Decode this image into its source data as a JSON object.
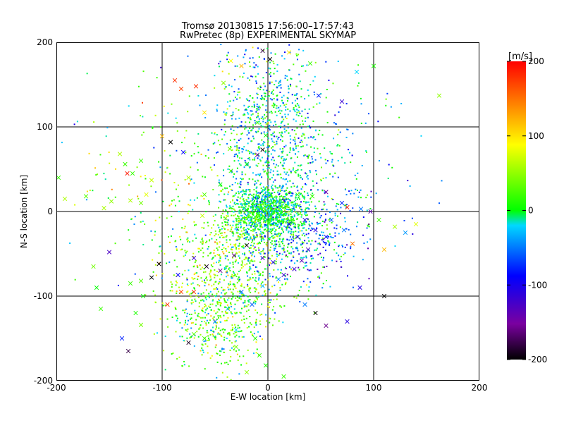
{
  "chart_data": {
    "type": "scatter",
    "title": "Tromsø 20130815 17:56:00–17:57:43",
    "subtitle": "RwPretec (8p) EXPERIMENTAL SKYMAP",
    "xlabel": "E-W location [km]",
    "ylabel": "N-S location [km]",
    "xlim": [
      -200,
      200
    ],
    "ylim": [
      -200,
      200
    ],
    "xticks": [
      "-200",
      "-100",
      "0",
      "100",
      "200"
    ],
    "yticks": [
      "-200",
      "-100",
      "0",
      "100",
      "200"
    ],
    "grid": true,
    "colorbar": {
      "label": "[m/s]",
      "range": [
        -200,
        200
      ],
      "ticks": [
        "200",
        "100",
        "0",
        "-100",
        "-200"
      ],
      "colormap": [
        "#000000",
        "#7a00a0",
        "#0000ff",
        "#00d8ff",
        "#00ff00",
        "#ffff00",
        "#ff0000"
      ]
    },
    "series": [
      {
        "marker": "cross",
        "points": [
          [
            -5,
            190,
            -180
          ],
          [
            -88,
            155,
            180
          ],
          [
            -82,
            145,
            170
          ],
          [
            -68,
            148,
            180
          ],
          [
            -42,
            152,
            50
          ],
          [
            -35,
            178,
            90
          ],
          [
            -25,
            172,
            120
          ],
          [
            2,
            180,
            -200
          ],
          [
            20,
            188,
            100
          ],
          [
            40,
            175,
            20
          ],
          [
            48,
            137,
            -80
          ],
          [
            70,
            130,
            -120
          ],
          [
            84,
            165,
            -20
          ],
          [
            100,
            172,
            10
          ],
          [
            162,
            137,
            50
          ],
          [
            -60,
            117,
            100
          ],
          [
            -10,
            105,
            30
          ],
          [
            -2,
            90,
            0
          ],
          [
            -100,
            89,
            120
          ],
          [
            -92,
            82,
            -200
          ],
          [
            -80,
            70,
            -90
          ],
          [
            -36,
            74,
            40
          ],
          [
            -5,
            73,
            -200
          ],
          [
            -10,
            67,
            -160
          ],
          [
            -20,
            56,
            0
          ],
          [
            -35,
            48,
            20
          ],
          [
            -45,
            32,
            0
          ],
          [
            -60,
            20,
            30
          ],
          [
            -75,
            40,
            60
          ],
          [
            -110,
            37,
            70
          ],
          [
            -115,
            20,
            80
          ],
          [
            -130,
            13,
            60
          ],
          [
            -148,
            12,
            50
          ],
          [
            -155,
            4,
            60
          ],
          [
            -172,
            18,
            30
          ],
          [
            -192,
            15,
            60
          ],
          [
            -198,
            40,
            20
          ],
          [
            -120,
            60,
            20
          ],
          [
            -135,
            56,
            20
          ],
          [
            -133,
            45,
            190
          ],
          [
            -120,
            10,
            40
          ],
          [
            -140,
            68,
            60
          ],
          [
            -128,
            45,
            20
          ],
          [
            28,
            20,
            30
          ],
          [
            42,
            18,
            20
          ],
          [
            55,
            23,
            -150
          ],
          [
            70,
            10,
            -80
          ],
          [
            75,
            5,
            190
          ],
          [
            88,
            3,
            -50
          ],
          [
            97,
            0,
            -140
          ],
          [
            105,
            -10,
            20
          ],
          [
            120,
            -18,
            60
          ],
          [
            130,
            -25,
            -40
          ],
          [
            140,
            -15,
            80
          ],
          [
            110,
            -45,
            120
          ],
          [
            -62,
            -5,
            70
          ],
          [
            -40,
            -8,
            50
          ],
          [
            -20,
            2,
            0
          ],
          [
            15,
            -3,
            0
          ],
          [
            35,
            -10,
            -110
          ],
          [
            45,
            -22,
            -110
          ],
          [
            55,
            -30,
            -100
          ],
          [
            60,
            -10,
            -60
          ],
          [
            72,
            -22,
            -50
          ],
          [
            80,
            -38,
            150
          ],
          [
            20,
            -15,
            -110
          ],
          [
            28,
            -30,
            -110
          ],
          [
            38,
            -45,
            -130
          ],
          [
            32,
            -58,
            -140
          ],
          [
            25,
            -68,
            -120
          ],
          [
            15,
            -75,
            -120
          ],
          [
            5,
            -60,
            -110
          ],
          [
            -5,
            -55,
            -140
          ],
          [
            -20,
            -40,
            -190
          ],
          [
            -32,
            -52,
            -170
          ],
          [
            -45,
            -70,
            -160
          ],
          [
            -58,
            -65,
            -190
          ],
          [
            -70,
            -55,
            -120
          ],
          [
            -85,
            -75,
            -90
          ],
          [
            -103,
            -62,
            -200
          ],
          [
            -110,
            -78,
            -200
          ],
          [
            -120,
            -82,
            30
          ],
          [
            -130,
            -85,
            20
          ],
          [
            -150,
            -48,
            -130
          ],
          [
            -165,
            -65,
            40
          ],
          [
            -158,
            -115,
            20
          ],
          [
            -162,
            -90,
            0
          ],
          [
            -138,
            -150,
            -80
          ],
          [
            -132,
            -165,
            -180
          ],
          [
            -120,
            -134,
            40
          ],
          [
            -95,
            -110,
            180
          ],
          [
            -82,
            -95,
            170
          ],
          [
            -70,
            -95,
            180
          ],
          [
            -50,
            -130,
            -50
          ],
          [
            -38,
            -115,
            -30
          ],
          [
            -15,
            -110,
            -60
          ],
          [
            -25,
            -95,
            -60
          ],
          [
            -5,
            -88,
            -30
          ],
          [
            10,
            -80,
            -40
          ],
          [
            35,
            -110,
            -50
          ],
          [
            45,
            -120,
            -200
          ],
          [
            55,
            -135,
            -160
          ],
          [
            75,
            -130,
            -110
          ],
          [
            87,
            -90,
            -110
          ],
          [
            110,
            -100,
            -200
          ],
          [
            -30,
            -140,
            -20
          ],
          [
            -60,
            -150,
            20
          ],
          [
            -70,
            -145,
            30
          ],
          [
            -75,
            -155,
            -190
          ],
          [
            -12,
            -150,
            10
          ],
          [
            -30,
            -160,
            40
          ],
          [
            -8,
            -170,
            20
          ],
          [
            -2,
            -182,
            10
          ],
          [
            -20,
            -190,
            50
          ],
          [
            15,
            -195,
            20
          ],
          [
            -118,
            -100,
            0
          ],
          [
            -125,
            -120,
            10
          ]
        ]
      },
      {
        "marker": "dot",
        "points": "dense field of small dot markers (several thousand) concentrated around the origin, extending north along x≈0 to y≈200 and southwest to (-60,-180); each colored by Doppler velocity in m/s"
      }
    ]
  }
}
